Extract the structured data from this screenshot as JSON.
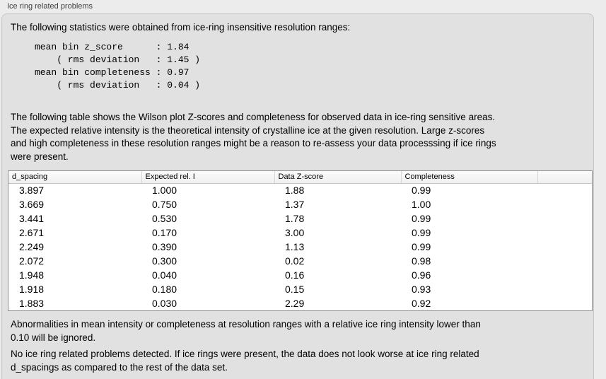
{
  "section": {
    "title": "Ice ring related problems"
  },
  "stats": {
    "intro": "The following statistics were obtained from ice-ring insensitive resolution ranges:",
    "lines": [
      "mean bin z_score      : 1.84",
      "    ( rms deviation   : 1.45 )",
      "mean bin completeness : 0.97",
      "    ( rms deviation   : 0.04 )"
    ]
  },
  "table_intro_lines": [
    "The following table shows the Wilson plot Z-scores and completeness for observed data in ice-ring sensitive areas.",
    "The expected relative intensity is the theoretical intensity of crystalline ice at the given resolution. Large z-scores",
    "and high completeness in these resolution ranges might be a reason to re-assess your data processsing if ice rings",
    "were present."
  ],
  "table": {
    "columns": [
      "d_spacing",
      "Expected rel. I",
      "Data Z-score",
      "Completeness"
    ],
    "rows": [
      [
        "3.897",
        "1.000",
        "1.88",
        "0.99"
      ],
      [
        "3.669",
        "0.750",
        "1.37",
        "1.00"
      ],
      [
        "3.441",
        "0.530",
        "1.78",
        "0.99"
      ],
      [
        "2.671",
        "0.170",
        "3.00",
        "0.99"
      ],
      [
        "2.249",
        "0.390",
        "1.13",
        "0.99"
      ],
      [
        "2.072",
        "0.300",
        "0.02",
        "0.98"
      ],
      [
        "1.948",
        "0.040",
        "0.16",
        "0.96"
      ],
      [
        "1.918",
        "0.180",
        "0.15",
        "0.93"
      ],
      [
        "1.883",
        "0.030",
        "2.29",
        "0.92"
      ]
    ]
  },
  "notes": {
    "ignored_lines": [
      "Abnormalities in mean intensity or completeness at resolution ranges with a relative ice ring intensity lower than",
      "0.10 will be ignored."
    ],
    "conclusion_lines": [
      "No ice ring related problems detected. If ice rings were present, the data does not look worse at ice ring related",
      "d_spacings as compared to the rest of the data set."
    ]
  },
  "colors": {
    "page-bg": "#ececec",
    "panel-bg": "#e1e1e1",
    "panel-border": "#c6c6c6",
    "table-bg": "#ffffff",
    "table-border": "#8f8f8f",
    "header-divider": "#d6d6d6",
    "text-color": "#000000",
    "title-color": "#3f3f3f"
  }
}
